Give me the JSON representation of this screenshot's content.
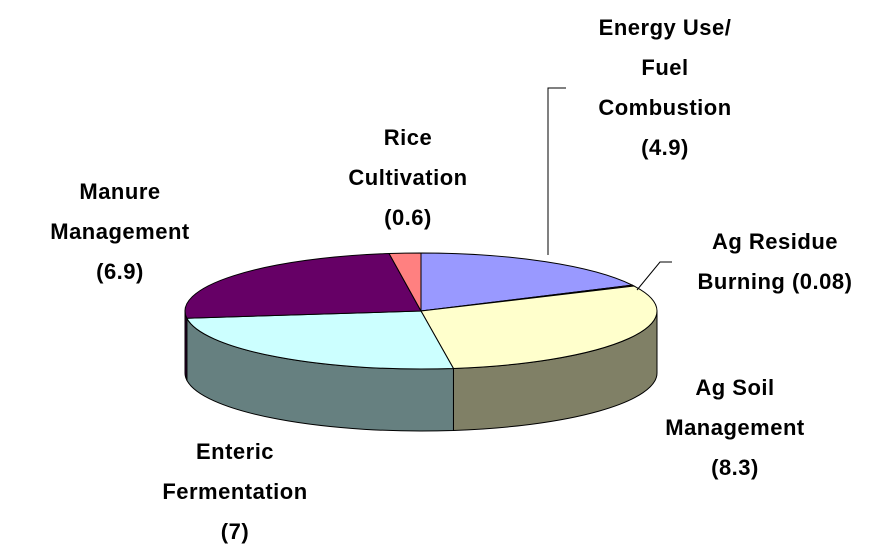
{
  "chart_data": {
    "type": "pie",
    "categories": [
      "Energy Use/ Fuel Combustion",
      "Ag Residue Burning",
      "Ag Soil Management",
      "Enteric Fermentation",
      "Manure Management",
      "Rice Cultivation"
    ],
    "values": [
      4.9,
      0.08,
      8.3,
      7,
      6.9,
      0.6
    ],
    "value_labels": [
      "(4.9)",
      "(0.08)",
      "(8.3)",
      "(7)",
      "(6.9)",
      "(0.6)"
    ],
    "colors": [
      "#9999ff",
      "#993366",
      "#ffffcc",
      "#ccffff",
      "#660066",
      "#ff8080"
    ]
  }
}
